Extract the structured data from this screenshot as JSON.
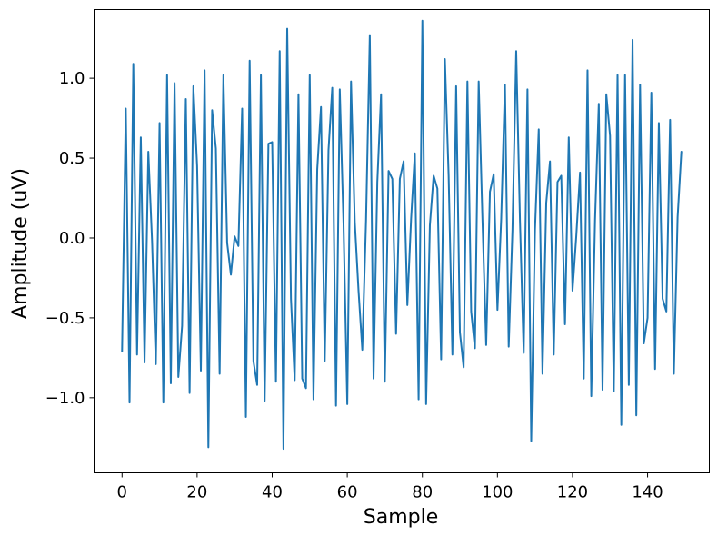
{
  "chart_data": {
    "type": "line",
    "title": "",
    "xlabel": "Sample",
    "ylabel": "Amplitude (uV)",
    "xlim": [
      -7.45,
      156.45
    ],
    "ylim": [
      -1.47,
      1.43
    ],
    "xticks": [
      0,
      20,
      40,
      60,
      80,
      100,
      120,
      140
    ],
    "yticks": [
      -1.0,
      -0.5,
      0.0,
      0.5,
      1.0
    ],
    "ytick_labels": [
      "−1.0",
      "−0.5",
      "0.0",
      "0.5",
      "1.0"
    ],
    "grid": false,
    "legend": "none",
    "series": [
      {
        "color": "#1f77b4",
        "x_start": 0,
        "x_step": 1,
        "values": [
          -0.71,
          0.81,
          -1.03,
          1.09,
          -0.73,
          0.63,
          -0.78,
          0.54,
          -0.02,
          -0.79,
          0.72,
          -1.03,
          1.02,
          -0.91,
          0.97,
          -0.87,
          -0.55,
          0.87,
          -0.97,
          0.95,
          0.45,
          -0.83,
          1.05,
          -1.31,
          0.8,
          0.56,
          -0.85,
          1.02,
          -0.03,
          -0.23,
          0.01,
          -0.05,
          0.81,
          -1.12,
          1.11,
          -0.77,
          -0.92,
          1.02,
          -1.02,
          0.59,
          0.6,
          -0.9,
          1.17,
          -1.32,
          1.31,
          -0.38,
          -0.89,
          0.9,
          -0.88,
          -0.94,
          1.02,
          -1.01,
          0.43,
          0.82,
          -0.77,
          0.55,
          0.94,
          -1.05,
          0.93,
          0.09,
          -1.04,
          0.98,
          0.1,
          -0.33,
          -0.7,
          0.11,
          1.27,
          -0.88,
          0.35,
          0.9,
          -0.9,
          0.42,
          0.37,
          -0.6,
          0.37,
          0.48,
          -0.42,
          0.12,
          0.53,
          -1.01,
          1.36,
          -1.04,
          0.08,
          0.39,
          0.31,
          -0.76,
          1.12,
          0.39,
          -0.73,
          0.95,
          -0.59,
          -0.81,
          0.98,
          -0.46,
          -0.69,
          0.98,
          0.12,
          -0.67,
          0.29,
          0.4,
          -0.45,
          0.12,
          0.96,
          -0.68,
          0.05,
          1.17,
          0.11,
          -0.72,
          0.93,
          -1.27,
          0.05,
          0.68,
          -0.85,
          0.22,
          0.48,
          -0.73,
          0.35,
          0.39,
          -0.54,
          0.63,
          -0.33,
          0.01,
          0.41,
          -0.88,
          1.05,
          -0.99,
          0.11,
          0.84,
          -0.95,
          0.9,
          0.64,
          -0.96,
          1.02,
          -1.17,
          1.02,
          -0.92,
          1.24,
          -1.11,
          0.96,
          -0.66,
          -0.5,
          0.91,
          -0.82,
          0.72,
          -0.38,
          -0.46,
          0.74,
          -0.85,
          0.13,
          0.54
        ]
      }
    ]
  }
}
